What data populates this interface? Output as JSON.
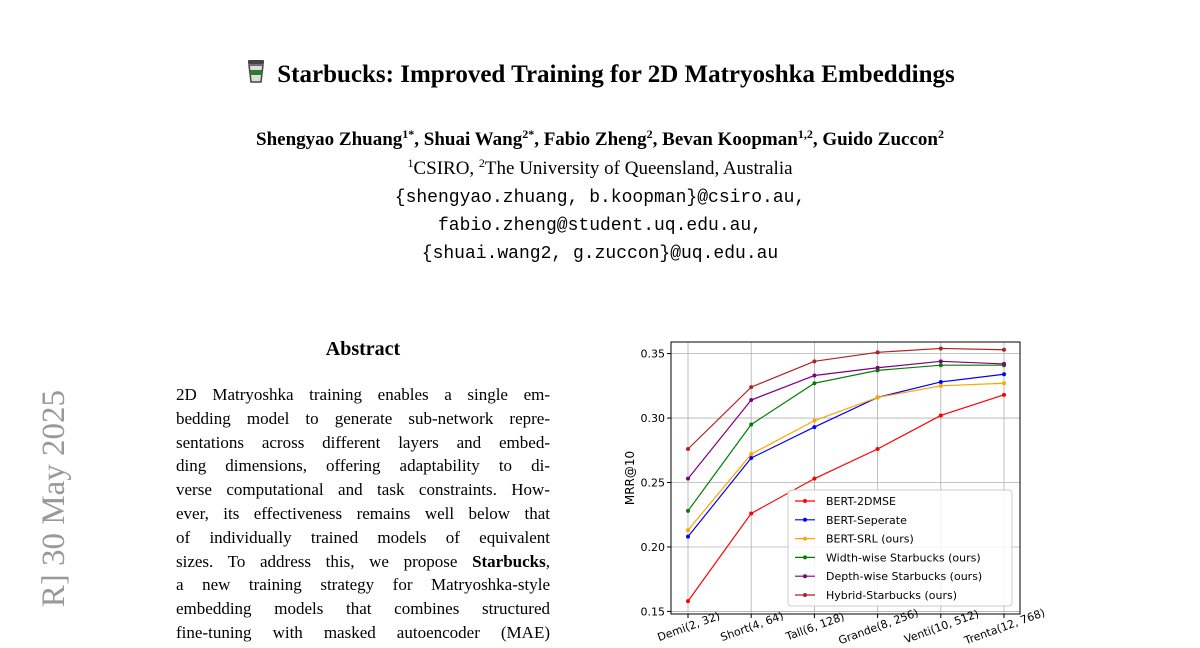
{
  "header": {
    "title": "Starbucks: Improved Training for 2D Matryoshka Embeddings",
    "authors": [
      {
        "name": "Shengyao Zhuang",
        "sup": "1*",
        "after": ","
      },
      {
        "name": "Shuai Wang",
        "sup": "2*",
        "after": ","
      },
      {
        "name": "Fabio Zheng",
        "sup": "2",
        "after": ","
      },
      {
        "name": "Bevan Koopman",
        "sup": "1,2",
        "after": ","
      },
      {
        "name": "Guido Zuccon",
        "sup": "2"
      }
    ],
    "affiliations": [
      {
        "sup": "1",
        "text": "CSIRO,"
      },
      {
        "sup": "2",
        "text": "The University of Queensland, Australia"
      }
    ],
    "emails": [
      "{shengyao.zhuang, b.koopman}@csiro.au,",
      "fabio.zheng@student.uq.edu.au,",
      "{shuai.wang2, g.zuccon}@uq.edu.au"
    ]
  },
  "sidebar": {
    "stamp": "R]  30 May 2025"
  },
  "abstract": {
    "heading": "Abstract",
    "lines": [
      "2D Matryoshka training enables a single em-",
      "bedding model to generate sub-network repre-",
      "sentations across different layers and embed-",
      "ding dimensions, offering adaptability to di-",
      "verse computational and task constraints. How-",
      "ever, its effectiveness remains well below that",
      "of individually trained models of equivalent",
      {
        "before": "sizes. To address this, we propose",
        "bold": "Starbucks",
        "after": ","
      },
      "a new training strategy for Matryoshka-style",
      "embedding models that combines structured",
      "fine-tuning with masked autoencoder (MAE)"
    ]
  },
  "chart_data": {
    "type": "line",
    "y_label": "MRR@10",
    "categories": [
      "Demi(2, 32)",
      "Short(4, 64)",
      "Tall(6, 128)",
      "Grande(8, 256)",
      "Venti(10, 512)",
      "Trenta(12, 768)"
    ],
    "series": [
      {
        "name": "BERT-2DMSE",
        "color": "#ff0000",
        "values": [
          0.158,
          0.226,
          0.253,
          0.276,
          0.302,
          0.318
        ]
      },
      {
        "name": "BERT-Seperate",
        "color": "#0000ff",
        "values": [
          0.208,
          0.269,
          0.293,
          0.316,
          0.328,
          0.334
        ]
      },
      {
        "name": "BERT-SRL (ours)",
        "color": "#ffa500",
        "values": [
          0.213,
          0.272,
          0.298,
          0.316,
          0.325,
          0.327
        ]
      },
      {
        "name": "Width-wise Starbucks (ours)",
        "color": "#008000",
        "values": [
          0.228,
          0.295,
          0.327,
          0.337,
          0.341,
          0.341
        ]
      },
      {
        "name": "Depth-wise Starbucks (ours)",
        "color": "#800080",
        "values": [
          0.253,
          0.314,
          0.333,
          0.339,
          0.344,
          0.342
        ]
      },
      {
        "name": "Hybrid-Starbucks (ours)",
        "color": "#b22222",
        "values": [
          0.276,
          0.324,
          0.344,
          0.351,
          0.354,
          0.353
        ]
      }
    ],
    "ylim": [
      0.148,
      0.359
    ],
    "yticks": [
      0.15,
      {
        "value": 0.2,
        "label": "0.20"
      },
      0.25,
      {
        "value": 0.3,
        "label": "0.30"
      },
      0.35
    ],
    "grid": true,
    "legend": "lower-right"
  }
}
